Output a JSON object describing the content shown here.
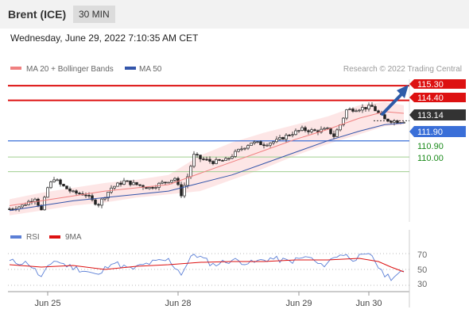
{
  "header": {
    "title": "Brent (ICE)",
    "timeframe": "30 MIN"
  },
  "datetime": "Wednesday, June 29, 2022 7:10:35 AM CET",
  "legend": {
    "ma20": "MA 20 + Bollinger Bands",
    "ma50": "MA 50",
    "source": "Research © 2022 Trading Central",
    "rsi": "RSI",
    "ma9": "9MA"
  },
  "colors": {
    "ma20": "#f08080",
    "ma50": "#3355aa",
    "band": "#fde3e3",
    "resistance": "#dd1111",
    "support": "#3a6fd8",
    "level_green": "#1a8a1a",
    "price_tag": "#333333",
    "arrow": "#2d5ba8",
    "rsi": "#5b7fd6"
  },
  "levels": {
    "r2": "115.30",
    "r1": "114.40",
    "price": "113.14",
    "s1": "111.90",
    "s2": "110.90",
    "s3": "110.00"
  },
  "rsi_axis": [
    "70",
    "50",
    "30"
  ],
  "x_labels": [
    "Jun 25",
    "Jun 28",
    "Jun 29",
    "Jun 30"
  ],
  "chart_data": {
    "type": "candlestick",
    "title": "",
    "y_range": [
      106.9,
      115.7
    ],
    "rsi_range": [
      20,
      80
    ],
    "price_path": [
      [
        0,
        107.7
      ],
      [
        4,
        107.9
      ],
      [
        8,
        108.4
      ],
      [
        10,
        107.6
      ],
      [
        12,
        109.0
      ],
      [
        14,
        109.6
      ],
      [
        16,
        109.2
      ],
      [
        20,
        108.7
      ],
      [
        24,
        108.6
      ],
      [
        26,
        108.2
      ],
      [
        28,
        108.0
      ],
      [
        32,
        109.0
      ],
      [
        36,
        109.4
      ],
      [
        40,
        109.2
      ],
      [
        44,
        109.0
      ],
      [
        48,
        109.3
      ],
      [
        52,
        109.6
      ],
      [
        54,
        108.6
      ],
      [
        56,
        109.7
      ],
      [
        58,
        111.0
      ],
      [
        60,
        110.8
      ],
      [
        64,
        110.6
      ],
      [
        68,
        110.7
      ],
      [
        72,
        111.3
      ],
      [
        76,
        111.8
      ],
      [
        80,
        111.7
      ],
      [
        84,
        111.9
      ],
      [
        88,
        112.3
      ],
      [
        92,
        112.6
      ],
      [
        96,
        112.5
      ],
      [
        100,
        112.6
      ],
      [
        102,
        112.2
      ],
      [
        104,
        112.9
      ],
      [
        106,
        113.8
      ],
      [
        110,
        113.9
      ],
      [
        114,
        114.0
      ],
      [
        116,
        113.6
      ],
      [
        118,
        113.2
      ],
      [
        122,
        113.1
      ],
      [
        124,
        113.14
      ]
    ],
    "ma20_path": [
      [
        0,
        107.9
      ],
      [
        10,
        108.2
      ],
      [
        20,
        108.5
      ],
      [
        30,
        108.8
      ],
      [
        40,
        109.0
      ],
      [
        50,
        109.2
      ],
      [
        60,
        109.9
      ],
      [
        70,
        110.6
      ],
      [
        80,
        111.3
      ],
      [
        90,
        112.0
      ],
      [
        100,
        112.6
      ],
      [
        110,
        113.3
      ],
      [
        118,
        113.7
      ],
      [
        124,
        113.6
      ]
    ],
    "ma50_path": [
      [
        0,
        107.6
      ],
      [
        10,
        107.9
      ],
      [
        20,
        108.2
      ],
      [
        30,
        108.4
      ],
      [
        40,
        108.6
      ],
      [
        50,
        108.8
      ],
      [
        60,
        109.3
      ],
      [
        70,
        109.8
      ],
      [
        80,
        110.5
      ],
      [
        90,
        111.2
      ],
      [
        100,
        111.9
      ],
      [
        110,
        112.5
      ],
      [
        118,
        112.9
      ],
      [
        124,
        113.0
      ]
    ],
    "bb_upper_path": [
      [
        0,
        108.3
      ],
      [
        10,
        108.7
      ],
      [
        20,
        109.0
      ],
      [
        30,
        109.3
      ],
      [
        40,
        109.5
      ],
      [
        50,
        109.8
      ],
      [
        60,
        111.0
      ],
      [
        70,
        111.8
      ],
      [
        80,
        112.4
      ],
      [
        90,
        112.9
      ],
      [
        100,
        113.4
      ],
      [
        110,
        114.1
      ],
      [
        118,
        114.3
      ],
      [
        124,
        114.1
      ]
    ],
    "bb_lower_path": [
      [
        0,
        107.3
      ],
      [
        10,
        107.6
      ],
      [
        20,
        107.9
      ],
      [
        30,
        108.1
      ],
      [
        40,
        108.4
      ],
      [
        50,
        108.6
      ],
      [
        60,
        108.8
      ],
      [
        70,
        109.5
      ],
      [
        80,
        110.2
      ],
      [
        90,
        111.0
      ],
      [
        100,
        111.7
      ],
      [
        110,
        112.3
      ],
      [
        118,
        112.8
      ],
      [
        124,
        112.9
      ]
    ],
    "rsi_path": [
      [
        0,
        60
      ],
      [
        6,
        58
      ],
      [
        10,
        40
      ],
      [
        14,
        62
      ],
      [
        18,
        55
      ],
      [
        24,
        48
      ],
      [
        28,
        42
      ],
      [
        32,
        60
      ],
      [
        38,
        50
      ],
      [
        44,
        58
      ],
      [
        50,
        62
      ],
      [
        54,
        45
      ],
      [
        58,
        70
      ],
      [
        64,
        56
      ],
      [
        70,
        62
      ],
      [
        76,
        58
      ],
      [
        82,
        64
      ],
      [
        88,
        60
      ],
      [
        94,
        66
      ],
      [
        98,
        54
      ],
      [
        104,
        70
      ],
      [
        108,
        64
      ],
      [
        114,
        68
      ],
      [
        117,
        46
      ],
      [
        120,
        40
      ],
      [
        124,
        46
      ]
    ],
    "rsi_ma9_path": [
      [
        0,
        56
      ],
      [
        10,
        53
      ],
      [
        20,
        55
      ],
      [
        30,
        50
      ],
      [
        40,
        54
      ],
      [
        50,
        56
      ],
      [
        60,
        59
      ],
      [
        70,
        60
      ],
      [
        80,
        60
      ],
      [
        90,
        62
      ],
      [
        100,
        62
      ],
      [
        110,
        64
      ],
      [
        116,
        60
      ],
      [
        120,
        53
      ],
      [
        124,
        47
      ]
    ],
    "x_ticks": [
      {
        "label": "Jun 25",
        "index": 12
      },
      {
        "label": "Jun 28",
        "index": 53
      },
      {
        "label": "Jun 29",
        "index": 91
      },
      {
        "label": "Jun 30",
        "index": 113
      }
    ]
  }
}
